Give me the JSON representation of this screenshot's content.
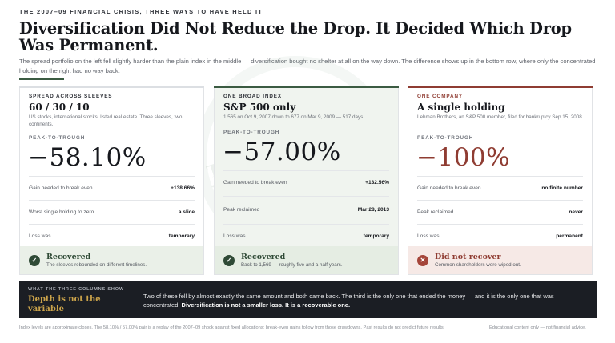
{
  "kicker": "THE 2007–09 FINANCIAL CRISIS, THREE WAYS TO HAVE HELD IT",
  "headline": "Diversification Did Not Reduce the Drop. It Decided Which Drop Was Permanent.",
  "dek": "The spread portfolio on the left fell slightly harder than the plain index in the middle — diversification bought no shelter at all on the way down. The difference shows up in the bottom row, where only the concentrated holding on the right had no way back.",
  "watermark": "TO THE WEALTH",
  "columns": [
    {
      "label": "SPREAD ACROSS SLEEVES",
      "title": "60 / 30 / 10",
      "subtitle": "US stocks, international stocks, listed real estate. Three sleeves, two continents.",
      "pt_label": "PEAK-TO-TROUGH",
      "value": "−58.10%",
      "rows": [
        {
          "k": "Gain needed to break even",
          "v": "+138.66%"
        },
        {
          "k": "Worst single holding to zero",
          "v": "a slice"
        },
        {
          "k": "Loss was",
          "v": "temporary"
        }
      ],
      "status_icon": "✓",
      "status_title": "Recovered",
      "status_note": "The sleeves rebounded on different timelines."
    },
    {
      "label": "ONE BROAD INDEX",
      "title": "S&P 500 only",
      "subtitle": "1,565 on Oct 9, 2007 down to 677 on Mar 9, 2009 — 517 days.",
      "pt_label": "PEAK-TO-TROUGH",
      "value": "−57.00%",
      "rows": [
        {
          "k": "Gain needed to break even",
          "v": "+132.56%"
        },
        {
          "k": "Peak reclaimed",
          "v": "Mar 28, 2013"
        },
        {
          "k": "Loss was",
          "v": "temporary"
        }
      ],
      "status_icon": "✓",
      "status_title": "Recovered",
      "status_note": "Back to 1,569 — roughly five and a half years."
    },
    {
      "label": "ONE COMPANY",
      "title": "A single holding",
      "subtitle": "Lehman Brothers, an S&P 500 member, filed for bankruptcy Sep 15, 2008.",
      "pt_label": "PEAK-TO-TROUGH",
      "value": "−100%",
      "rows": [
        {
          "k": "Gain needed to break even",
          "v": "no finite number"
        },
        {
          "k": "Peak reclaimed",
          "v": "never"
        },
        {
          "k": "Loss was",
          "v": "permanent"
        }
      ],
      "status_icon": "✕",
      "status_title": "Did not recover",
      "status_note": "Common shareholders were wiped out."
    }
  ],
  "band": {
    "label": "WHAT THE THREE COLUMNS SHOW",
    "title": "Depth is not the variable",
    "text": "Two of these fell by almost exactly the same amount and both came back. The third is the only one that ended the money — and it is the only one that was concentrated.",
    "text_bold": "Diversification is not a smaller loss. It is a recoverable one."
  },
  "footer": {
    "left": "Index levels are approximate closes. The 58.10% / 57.00% pair is a replay of the 2007–09 shock against fixed allocations; break-even gains follow from those drawdowns. Past results do not predict future results.",
    "right": "Educational content only — not financial advice."
  },
  "colors": {
    "accent_green": "#3b5b42",
    "accent_red": "#8f3c32",
    "band_bg": "#1b1e24",
    "band_title": "#c9a24a"
  }
}
